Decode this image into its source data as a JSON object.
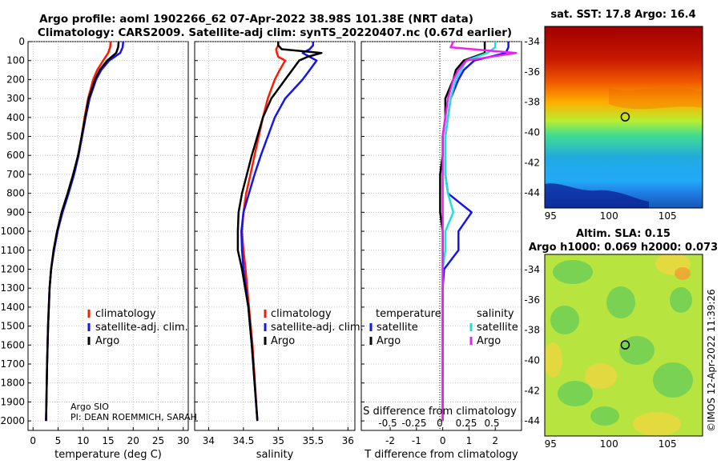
{
  "header": {
    "title_line1": "Argo profile: aoml 1902266_62 07-Apr-2022 38.98S 101.38E (NRT data)",
    "title_line2": "Climatology: CARS2009. Satellite-adj clim: synTS_20220407.nc (0.67d earlier)"
  },
  "footer": {
    "credit1": "Argo SIO",
    "credit2": "PI: DEAN ROEMMICH, SARAH",
    "timestamp": "©IMOS 12-Apr-2022 11:39:26"
  },
  "colors": {
    "climatology": "#ff1a00",
    "satellite": "#1515ee",
    "argo": "#000000",
    "sal_satellite": "#22dddd",
    "sal_argo": "#ee22ee"
  },
  "chart_data": [
    {
      "id": "temperature",
      "type": "line",
      "xlabel": "temperature (deg C)",
      "xlim": [
        -1,
        31
      ],
      "xticks": [
        "0",
        "5",
        "10",
        "15",
        "20",
        "25",
        "30"
      ],
      "xtick_values": [
        0,
        5,
        10,
        15,
        20,
        25,
        30
      ],
      "ylim": [
        0,
        2050
      ],
      "yticks": [
        "0",
        "100",
        "200",
        "300",
        "400",
        "500",
        "600",
        "700",
        "800",
        "900",
        "1000",
        "1100",
        "1200",
        "1300",
        "1400",
        "1500",
        "1600",
        "1700",
        "1800",
        "1900",
        "2000"
      ],
      "ytick_values": [
        0,
        100,
        200,
        300,
        400,
        500,
        600,
        700,
        800,
        900,
        1000,
        1100,
        1200,
        1300,
        1400,
        1500,
        1600,
        1700,
        1800,
        1900,
        2000
      ],
      "depth": [
        0,
        30,
        60,
        100,
        150,
        200,
        300,
        400,
        500,
        600,
        700,
        800,
        900,
        1000,
        1100,
        1200,
        1300,
        1500,
        1700,
        2000
      ],
      "series": [
        {
          "name": "climatology",
          "values": [
            15.5,
            15.4,
            15.0,
            14.0,
            12.8,
            12.0,
            11.0,
            10.3,
            9.7,
            9.0,
            8.1,
            7.0,
            5.8,
            4.8,
            4.1,
            3.6,
            3.3,
            3.0,
            2.8,
            2.6
          ]
        },
        {
          "name": "satellite-adj. clim.",
          "values": [
            18.0,
            17.9,
            17.4,
            15.2,
            13.6,
            12.6,
            11.3,
            10.5,
            9.8,
            9.1,
            8.2,
            7.1,
            5.9,
            4.9,
            4.2,
            3.6,
            3.3,
            3.0,
            2.8,
            2.6
          ]
        },
        {
          "name": "Argo",
          "values": [
            17.1,
            17.0,
            16.6,
            14.8,
            13.3,
            12.4,
            11.1,
            10.4,
            9.7,
            9.0,
            8.0,
            6.9,
            5.7,
            4.8,
            4.1,
            3.6,
            3.3,
            3.0,
            2.8,
            2.6
          ]
        }
      ],
      "legend": [
        "climatology",
        "satellite-adj. clim.",
        "Argo"
      ]
    },
    {
      "id": "salinity",
      "type": "line",
      "xlabel": "salinity",
      "xlim": [
        33.8,
        36.1
      ],
      "xticks": [
        "34",
        "34.5",
        "35",
        "35.5",
        "36"
      ],
      "xtick_values": [
        34,
        34.5,
        35,
        35.5,
        36
      ],
      "ylim": [
        0,
        2050
      ],
      "depth": [
        0,
        20,
        40,
        60,
        80,
        100,
        150,
        200,
        300,
        400,
        500,
        600,
        700,
        800,
        900,
        1000,
        1100,
        1200,
        1400,
        1600,
        2000
      ],
      "series": [
        {
          "name": "climatology",
          "values": [
            35.0,
            35.0,
            34.97,
            34.98,
            35.0,
            35.1,
            35.02,
            34.95,
            34.85,
            34.78,
            34.72,
            34.66,
            34.6,
            34.54,
            34.5,
            34.48,
            34.5,
            34.53,
            34.58,
            34.63,
            34.7
          ]
        },
        {
          "name": "satellite-adj. clim.",
          "values": [
            35.5,
            35.5,
            35.45,
            35.35,
            35.45,
            35.55,
            35.45,
            35.35,
            35.1,
            34.95,
            34.85,
            34.75,
            34.66,
            34.58,
            34.5,
            34.47,
            34.48,
            34.5,
            34.57,
            34.62,
            34.7
          ]
        },
        {
          "name": "Argo",
          "values": [
            35.0,
            35.0,
            35.05,
            35.62,
            35.42,
            35.3,
            35.2,
            35.1,
            34.9,
            34.78,
            34.7,
            34.62,
            34.55,
            34.48,
            34.43,
            34.42,
            34.42,
            34.48,
            34.57,
            34.62,
            34.7
          ]
        }
      ],
      "legend": [
        "climatology",
        "satellite-adj. clim.",
        "Argo"
      ]
    },
    {
      "id": "difference",
      "type": "line",
      "xlabel": "T difference from climatology",
      "top_label": "S difference from climatology",
      "xlim": [
        -3.1,
        3.0
      ],
      "xticks": [
        "-2",
        "-1",
        "0",
        "1",
        "2"
      ],
      "xtick_values": [
        -2,
        -1,
        0,
        1,
        2
      ],
      "top_xticks": [
        "-0.5",
        "-0.25",
        "0",
        "0.25",
        "0.5"
      ],
      "ylim": [
        0,
        2050
      ],
      "depth": [
        0,
        30,
        60,
        100,
        150,
        200,
        300,
        400,
        500,
        600,
        700,
        800,
        900,
        1000,
        1100,
        1200,
        1300,
        1500,
        2000
      ],
      "series": [
        {
          "name": "temperature satellite",
          "values": [
            2.5,
            2.5,
            2.4,
            1.2,
            0.8,
            0.6,
            0.3,
            0.2,
            0.1,
            0.1,
            0.1,
            0.2,
            1.1,
            0.6,
            0.6,
            0.05,
            0.0,
            0.0,
            0.0
          ]
        },
        {
          "name": "temperature Argo",
          "values": [
            1.6,
            1.6,
            1.6,
            0.8,
            0.5,
            0.4,
            0.1,
            0.1,
            0.0,
            0.0,
            -0.1,
            -0.1,
            -0.1,
            0.0,
            0.0,
            0.0,
            0.0,
            0.0,
            0.0
          ]
        },
        {
          "name": "salinity satellite",
          "values": [
            2.0,
            2.0,
            1.7,
            0.9,
            0.7,
            0.5,
            0.3,
            0.2,
            0.1,
            0.1,
            0.1,
            0.2,
            0.4,
            0.1,
            0.1,
            0.0,
            0.0,
            0.0,
            0.0
          ]
        },
        {
          "name": "salinity Argo",
          "values": [
            0.4,
            0.3,
            2.8,
            0.9,
            0.6,
            0.4,
            0.2,
            0.1,
            0.0,
            0.0,
            0.0,
            0.0,
            0.0,
            0.0,
            0.0,
            0.0,
            0.0,
            0.0,
            0.0
          ]
        }
      ],
      "legend_titles": [
        "temperature",
        "salinity"
      ],
      "legend": [
        "satellite",
        "Argo",
        "satellite",
        "Argo"
      ]
    },
    {
      "id": "sst_map",
      "type": "heatmap",
      "title": "sat. SST: 17.8 Argo: 16.4",
      "xticks": [
        "95",
        "100",
        "105"
      ],
      "xtick_values": [
        95,
        100,
        105
      ],
      "yticks": [
        "-34",
        "-36",
        "-38",
        "-40",
        "-42",
        "-44"
      ],
      "ytick_values": [
        -34,
        -36,
        -38,
        -40,
        -42,
        -44
      ],
      "xlim": [
        94.5,
        108
      ],
      "ylim": [
        -45,
        -33
      ],
      "argo_position": [
        101.38,
        -38.98
      ]
    },
    {
      "id": "sla_map",
      "type": "heatmap",
      "title_line1": "Altim. SLA: 0.15",
      "title_line2": "Argo h1000: 0.069 h2000: 0.073",
      "xticks": [
        "95",
        "100",
        "105"
      ],
      "xtick_values": [
        95,
        100,
        105
      ],
      "yticks": [
        "-34",
        "-36",
        "-38",
        "-40",
        "-42",
        "-44"
      ],
      "ytick_values": [
        -34,
        -36,
        -38,
        -40,
        -42,
        -44
      ],
      "xlim": [
        94.5,
        108
      ],
      "ylim": [
        -45,
        -33
      ],
      "argo_position": [
        101.38,
        -38.98
      ]
    }
  ]
}
